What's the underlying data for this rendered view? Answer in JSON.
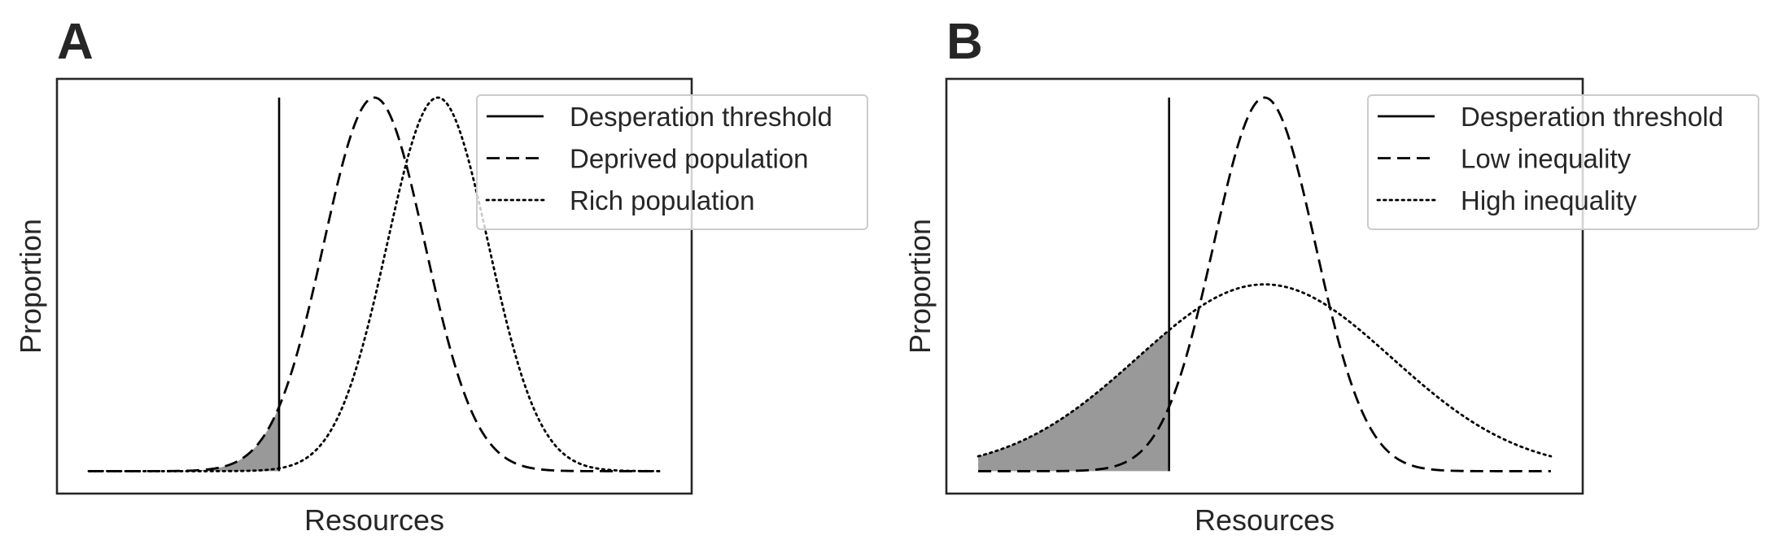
{
  "chart_data": [
    {
      "panel_label": "A",
      "type": "line",
      "xlabel": "Resources",
      "ylabel": "Proportion",
      "x_ticks_shown": false,
      "y_ticks_shown": false,
      "grid": false,
      "legend_position": "top-right",
      "xlim": [
        -5,
        5
      ],
      "ylim": [
        -0.06,
        1.05
      ],
      "threshold_x": -1.5,
      "shaded_region": "area under Deprived population curve left of the Desperation threshold",
      "series": [
        {
          "name": "Desperation threshold",
          "style": "solid",
          "kind": "vertical-line",
          "x": -1.5
        },
        {
          "name": "Deprived population",
          "style": "dashed",
          "kind": "normal",
          "mean": 0,
          "sd": 0.8,
          "peak": 1.0,
          "x_range": [
            -4.5,
            4.5
          ]
        },
        {
          "name": "Rich population",
          "style": "dotted",
          "kind": "normal",
          "mean": 1.0,
          "sd": 0.8,
          "peak": 1.0,
          "x_range": [
            -4.5,
            4.5
          ]
        }
      ]
    },
    {
      "panel_label": "B",
      "type": "line",
      "xlabel": "Resources",
      "ylabel": "Proportion",
      "x_ticks_shown": false,
      "y_ticks_shown": false,
      "grid": false,
      "legend_position": "top-right",
      "xlim": [
        -5,
        5
      ],
      "ylim": [
        -0.06,
        1.05
      ],
      "threshold_x": -1.5,
      "shaded_region": "area under High inequality curve left of the Desperation threshold",
      "series": [
        {
          "name": "Desperation threshold",
          "style": "solid",
          "kind": "vertical-line",
          "x": -1.5
        },
        {
          "name": "Low inequality",
          "style": "dashed",
          "kind": "normal",
          "mean": 0,
          "sd": 0.8,
          "peak": 1.0,
          "x_range": [
            -4.5,
            4.5
          ]
        },
        {
          "name": "High inequality",
          "style": "dotted",
          "kind": "normal",
          "mean": 0,
          "sd": 2.0,
          "peak": 0.5,
          "x_range": [
            -4.5,
            4.5
          ]
        }
      ]
    }
  ]
}
